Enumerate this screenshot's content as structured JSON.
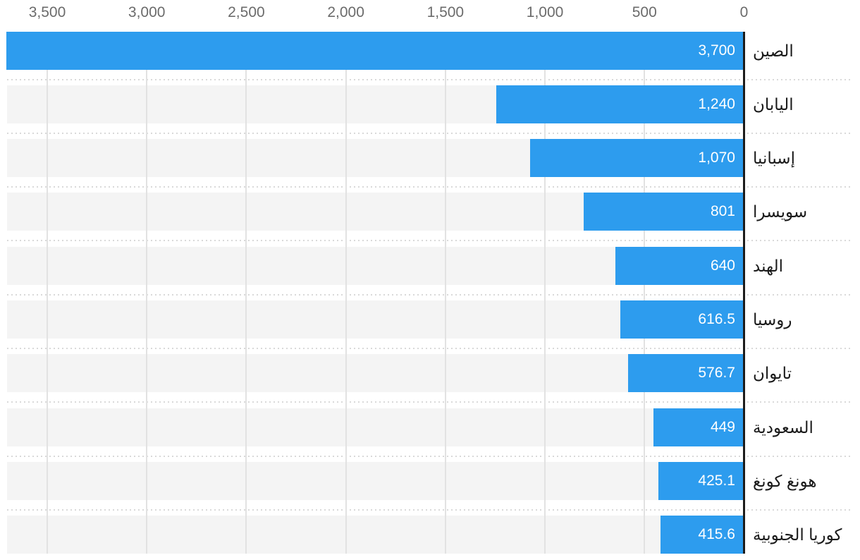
{
  "chart_data": {
    "type": "bar",
    "orientation": "horizontal",
    "direction": "rtl",
    "title": "",
    "xlabel": "",
    "ylabel": "",
    "xlim": [
      0,
      3700
    ],
    "grid": true,
    "legend": "none",
    "categories": [
      "الصين",
      "اليابان",
      "إسبانيا",
      "سويسرا",
      "الهند",
      "روسيا",
      "تايوان",
      "السعودية",
      "هونغ كونغ",
      "كوريا الجنوبية"
    ],
    "values": [
      3700,
      1240,
      1070,
      801,
      640,
      616.5,
      576.7,
      449,
      425.1,
      415.6
    ],
    "value_labels": [
      "3,700",
      "1,240",
      "1,070",
      "801",
      "640",
      "616.5",
      "576.7",
      "449",
      "425.1",
      "415.6"
    ],
    "axis_ticks": [
      {
        "value": 3500,
        "label": "3,500"
      },
      {
        "value": 3000,
        "label": "3,000"
      },
      {
        "value": 2500,
        "label": "2,500"
      },
      {
        "value": 2000,
        "label": "2,000"
      },
      {
        "value": 1500,
        "label": "1,500"
      },
      {
        "value": 1000,
        "label": "1,000"
      },
      {
        "value": 500,
        "label": "500"
      },
      {
        "value": 0,
        "label": "0"
      }
    ],
    "colors": {
      "bar": "#2d9cee",
      "track": "#f4f4f4",
      "gridline": "#e2e2e2",
      "separator": "#d9d9d9",
      "zero_axis_line": "#1c1c1c",
      "tick_label": "#6b6b6b",
      "category_label": "#1a1a1a",
      "value_label": "#ffffff",
      "background": "#ffffff"
    }
  }
}
